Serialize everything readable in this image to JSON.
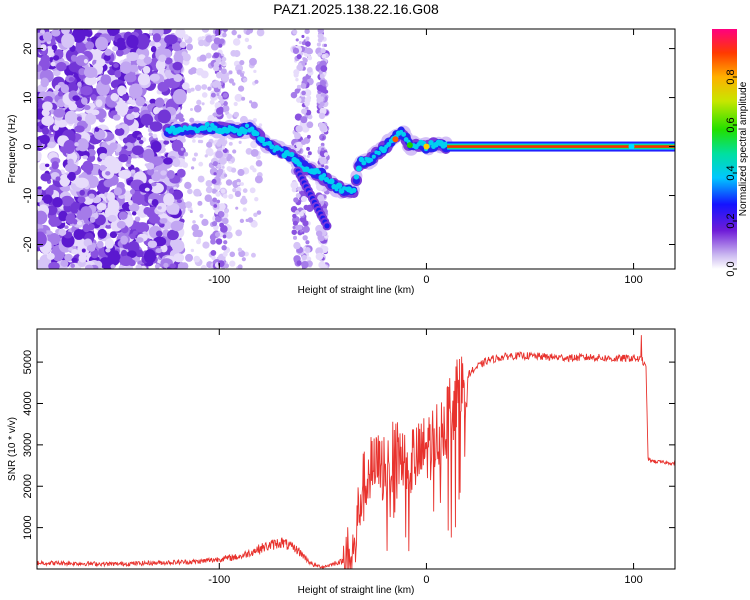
{
  "title": "PAZ1.2025.138.22.16.G08",
  "chart_data": [
    {
      "type": "heatmap",
      "xlabel": "Height of straight line (km)",
      "ylabel": "Frequency (Hz)",
      "xlim": [
        -188,
        120
      ],
      "ylim": [
        -25,
        24
      ],
      "xticks": [
        -100,
        0,
        100
      ],
      "yticks": [
        -20,
        -10,
        0,
        10,
        20
      ],
      "colorbar": {
        "label": "Normalized spectral amplitude",
        "range": [
          0,
          1
        ],
        "ticks": [
          0.0,
          0.2,
          0.4,
          0.6,
          0.8
        ]
      },
      "ridge": {
        "x": [
          -125,
          -115,
          -110,
          -105,
          -100,
          -95,
          -90,
          -85,
          -80,
          -75,
          -70,
          -65,
          -60,
          -55,
          -50,
          -45,
          -40,
          -35,
          -32,
          -28,
          -25,
          -20,
          -15,
          -12,
          -8,
          -5,
          0,
          5,
          10,
          120
        ],
        "y": [
          3,
          3.5,
          3.5,
          4,
          3.5,
          3.5,
          3,
          4,
          1.5,
          0,
          -1,
          -2,
          -4,
          -5,
          -6,
          -8,
          -9,
          -9,
          -3,
          -3,
          -2,
          0,
          2,
          3,
          0,
          0.5,
          0,
          0.5,
          0,
          0
        ]
      },
      "grid": false
    },
    {
      "type": "line",
      "xlabel": "Height of straight line (km)",
      "ylabel": "SNR (10 * v/v)",
      "xlim": [
        -188,
        120
      ],
      "ylim": [
        0,
        5800
      ],
      "xticks": [
        -100,
        0,
        100
      ],
      "yticks": [
        1000,
        2000,
        3000,
        4000,
        5000
      ],
      "color": "#e8322d",
      "envelope": {
        "x": [
          -188,
          -150,
          -110,
          -90,
          -80,
          -70,
          -62,
          -55,
          -50,
          -45,
          -40,
          -35,
          -32,
          -28,
          -24,
          -20,
          -15,
          -10,
          -5,
          0,
          5,
          10,
          15,
          20,
          25,
          30,
          40,
          50,
          60,
          70,
          80,
          90,
          100,
          104,
          106,
          107,
          110,
          120
        ],
        "y": [
          150,
          120,
          180,
          300,
          500,
          650,
          450,
          100,
          50,
          120,
          200,
          400,
          1800,
          2400,
          2500,
          2600,
          2800,
          2900,
          2700,
          3000,
          3300,
          3800,
          4300,
          4700,
          4900,
          5050,
          5150,
          5150,
          5120,
          5100,
          5120,
          5080,
          5100,
          5050,
          4900,
          2650,
          2600,
          2550
        ]
      },
      "grid": false
    }
  ]
}
